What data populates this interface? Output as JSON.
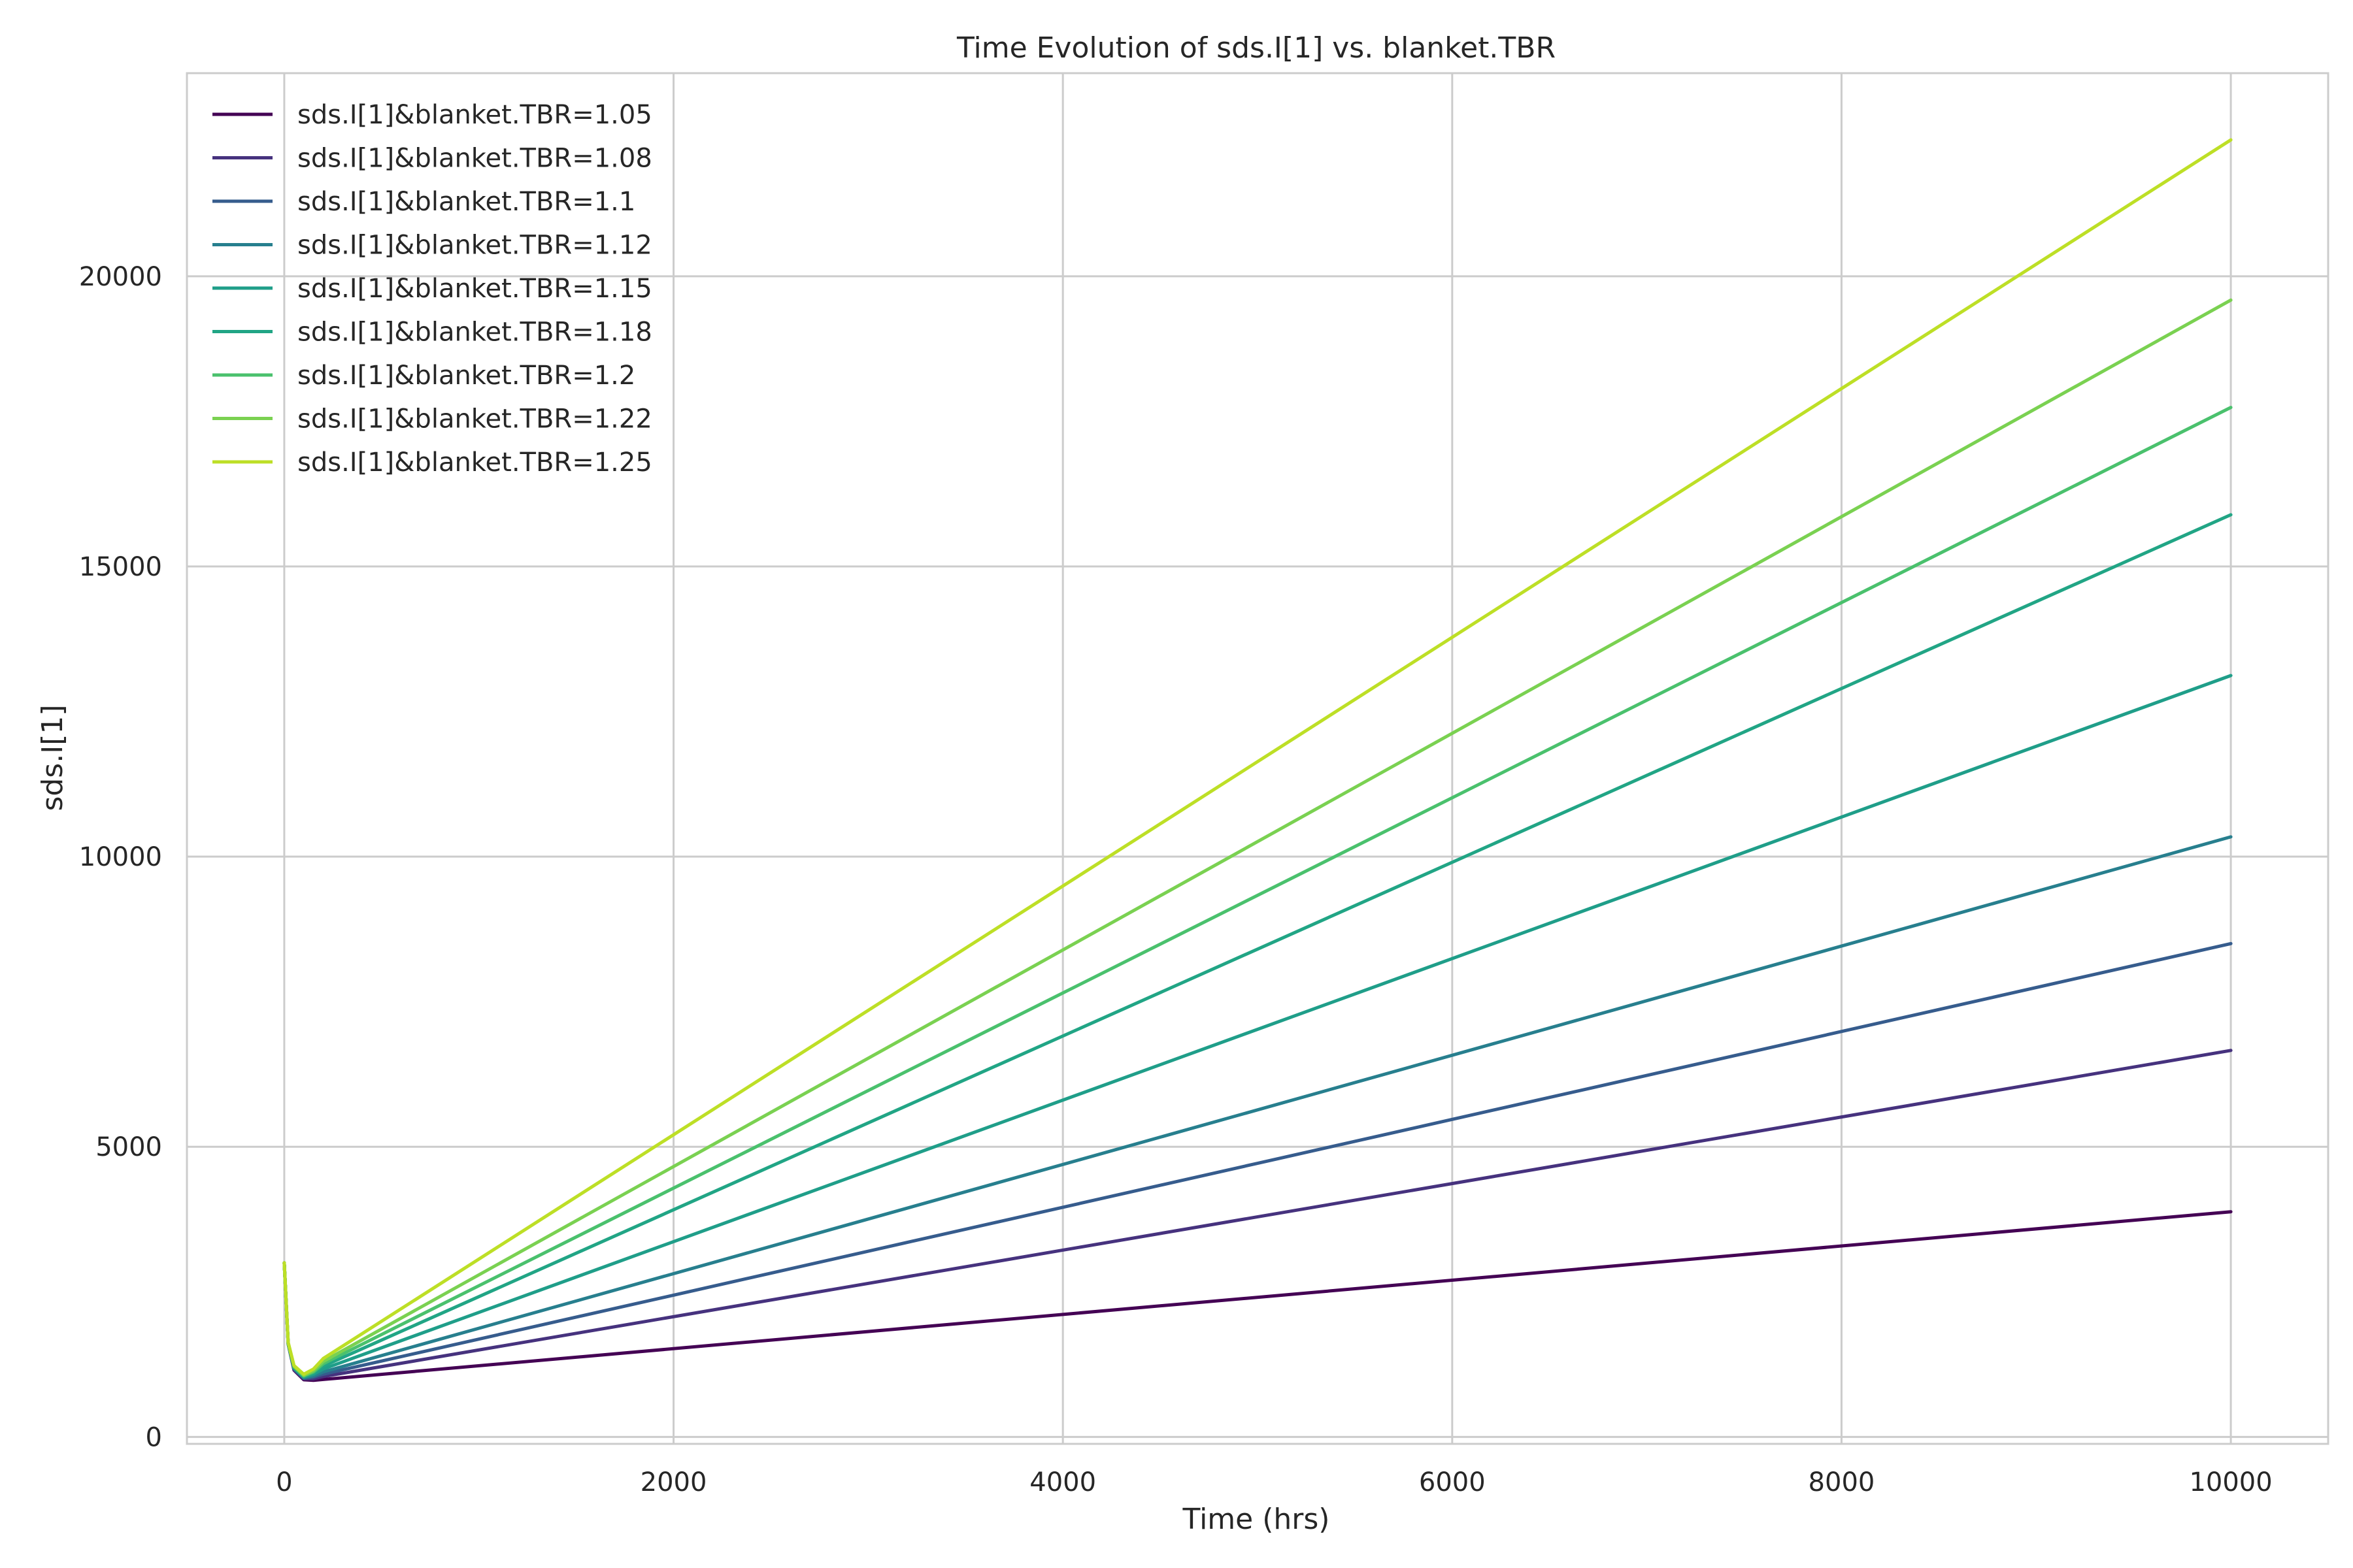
{
  "chart_data": {
    "type": "line",
    "title": "Time Evolution of sds.I[1] vs. blanket.TBR",
    "xlabel": "Time (hrs)",
    "ylabel": "sds.I[1]",
    "xlim": [
      -500,
      10500
    ],
    "ylim": [
      -120,
      23500
    ],
    "xticks": [
      0,
      2000,
      4000,
      6000,
      8000,
      10000
    ],
    "yticks": [
      0,
      5000,
      10000,
      15000,
      20000
    ],
    "grid": true,
    "legend_position": "upper-left",
    "series": [
      {
        "name": "sds.I[1]&blanket.TBR=1.05",
        "color": "#440154",
        "x": [
          0,
          20,
          50,
          100,
          150,
          200,
          10000
        ],
        "y": [
          3000,
          1600,
          1150,
          985,
          975,
          990,
          3880
        ]
      },
      {
        "name": "sds.I[1]&blanket.TBR=1.08",
        "color": "#46327e",
        "x": [
          0,
          20,
          50,
          100,
          150,
          200,
          10000
        ],
        "y": [
          3000,
          1600,
          1160,
          1000,
          1000,
          1040,
          6660
        ]
      },
      {
        "name": "sds.I[1]&blanket.TBR=1.1",
        "color": "#365c8d",
        "x": [
          0,
          20,
          50,
          100,
          150,
          200,
          10000
        ],
        "y": [
          3000,
          1600,
          1170,
          1010,
          1030,
          1080,
          8500
        ]
      },
      {
        "name": "sds.I[1]&blanket.TBR=1.12",
        "color": "#277f8e",
        "x": [
          0,
          20,
          50,
          100,
          150,
          200,
          10000
        ],
        "y": [
          3000,
          1600,
          1180,
          1020,
          1050,
          1120,
          10340
        ]
      },
      {
        "name": "sds.I[1]&blanket.TBR=1.15",
        "color": "#1f9e89",
        "x": [
          0,
          20,
          50,
          100,
          150,
          200,
          10000
        ],
        "y": [
          3000,
          1610,
          1190,
          1030,
          1080,
          1170,
          13120
        ]
      },
      {
        "name": "sds.I[1]&blanket.TBR=1.18",
        "color": "#21a585",
        "x": [
          0,
          20,
          50,
          100,
          150,
          200,
          10000
        ],
        "y": [
          3000,
          1610,
          1200,
          1040,
          1100,
          1220,
          15890
        ]
      },
      {
        "name": "sds.I[1]&blanket.TBR=1.2",
        "color": "#4ac16d",
        "x": [
          0,
          20,
          50,
          100,
          150,
          200,
          10000
        ],
        "y": [
          3000,
          1620,
          1210,
          1050,
          1120,
          1260,
          17740
        ]
      },
      {
        "name": "sds.I[1]&blanket.TBR=1.22",
        "color": "#7ad151",
        "x": [
          0,
          20,
          50,
          100,
          150,
          200,
          10000
        ],
        "y": [
          3000,
          1620,
          1220,
          1060,
          1140,
          1300,
          19590
        ]
      },
      {
        "name": "sds.I[1]&blanket.TBR=1.25",
        "color": "#bddf26",
        "x": [
          0,
          20,
          50,
          100,
          150,
          200,
          10000
        ],
        "y": [
          3000,
          1630,
          1230,
          1080,
          1170,
          1350,
          22350
        ]
      }
    ]
  }
}
